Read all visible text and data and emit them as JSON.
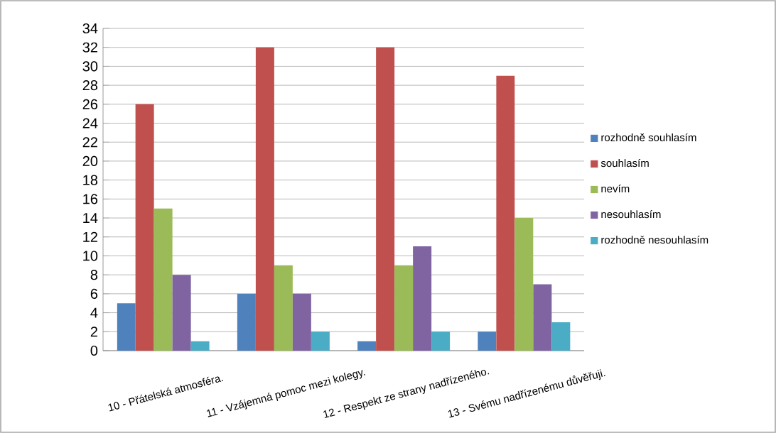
{
  "chart_data": {
    "type": "bar",
    "categories": [
      "10 - Přátelská atmosféra.",
      "11 - Vzájemná pomoc mezi kolegy.",
      "12 - Respekt ze strany nadřízeného.",
      "13 - Svému nadřízenému důvěřuji."
    ],
    "series": [
      {
        "name": "rozhodně souhlasím",
        "color": "#4f81bd",
        "values": [
          5,
          6,
          1,
          2
        ]
      },
      {
        "name": "souhlasím",
        "color": "#c0504d",
        "values": [
          26,
          32,
          32,
          29
        ]
      },
      {
        "name": "nevím",
        "color": "#9bbb59",
        "values": [
          15,
          9,
          9,
          14
        ]
      },
      {
        "name": "nesouhlasím",
        "color": "#8064a2",
        "values": [
          8,
          6,
          11,
          7
        ]
      },
      {
        "name": "rozhodně nesouhlasím",
        "color": "#4bacc6",
        "values": [
          1,
          2,
          2,
          3
        ]
      }
    ],
    "ylim": [
      0,
      34
    ],
    "yticks": [
      0,
      2,
      4,
      6,
      8,
      10,
      12,
      14,
      16,
      18,
      20,
      22,
      24,
      26,
      28,
      30,
      32,
      34
    ],
    "grid": "y",
    "legend": "right"
  }
}
